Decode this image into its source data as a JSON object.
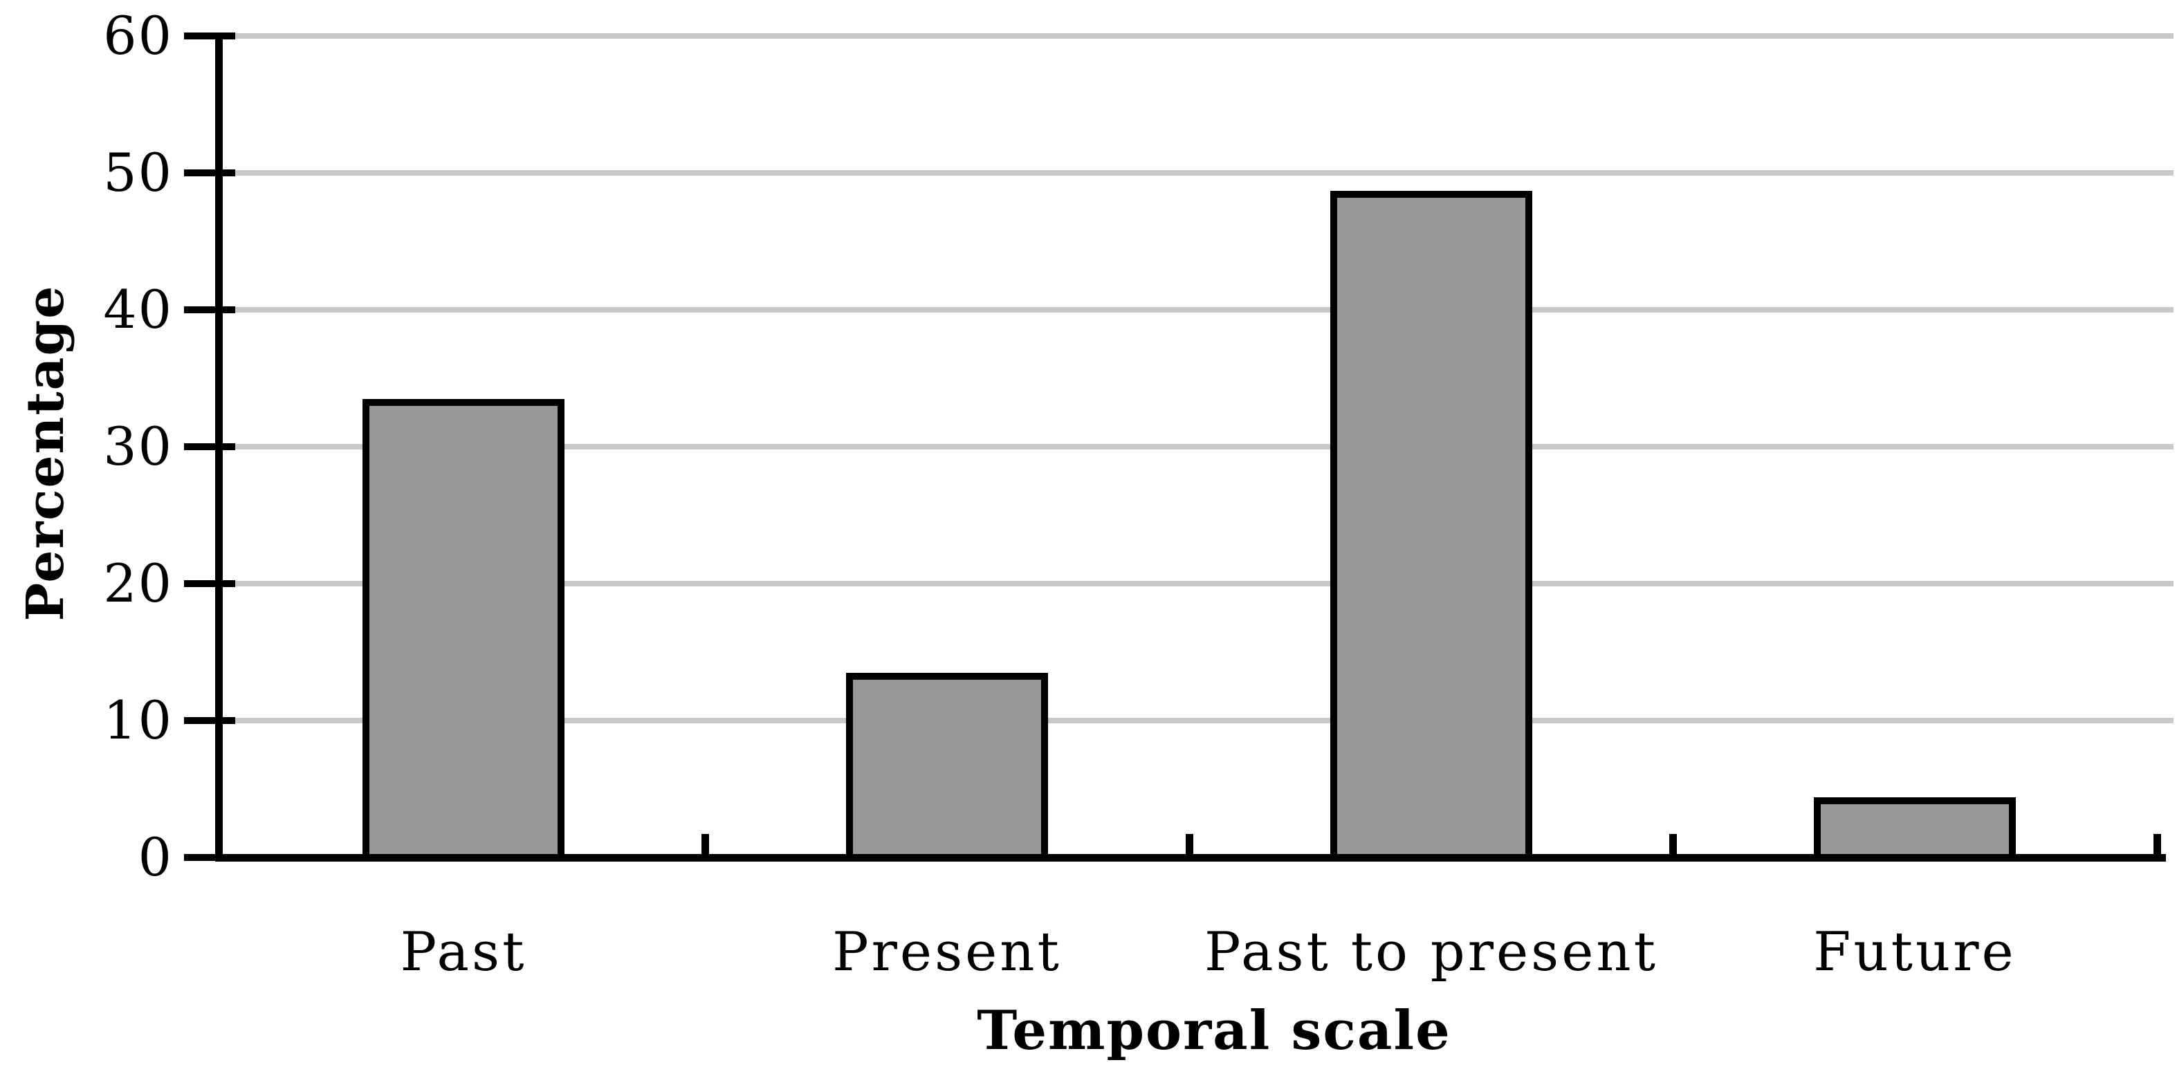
{
  "chart_data": {
    "type": "bar",
    "title": "",
    "categories": [
      "Past",
      "Present",
      "Past to present",
      "Future"
    ],
    "values": [
      33.5,
      13.5,
      48.7,
      4.4
    ],
    "xlabel": "Temporal scale",
    "ylabel": "Percentage",
    "yticks": [
      0,
      10,
      20,
      30,
      40,
      50,
      60
    ],
    "ylim": [
      0,
      60
    ],
    "grid": true,
    "legend_position": "none",
    "colors": {
      "bar_fill": "#979797",
      "bar_border": "#000000",
      "gridline": "#c8c8c8",
      "axis": "#000000",
      "text": "#000000",
      "background": "#ffffff"
    }
  }
}
